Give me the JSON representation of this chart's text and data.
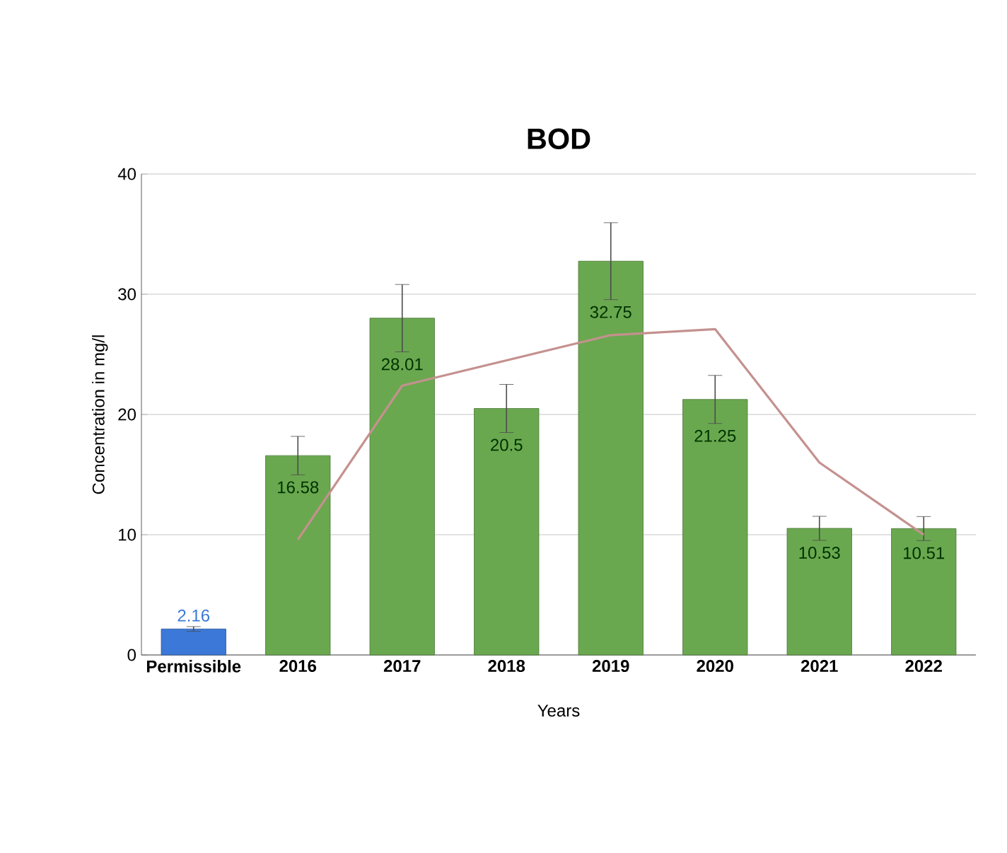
{
  "chart_data": {
    "type": "bar",
    "title": "BOD",
    "xlabel": "Years",
    "ylabel": "Concentration in mg/l",
    "categories": [
      "Permissible",
      "2016",
      "2017",
      "2018",
      "2019",
      "2020",
      "2021",
      "2022"
    ],
    "series": [
      {
        "colors": [
          "#3c78d8",
          "#6aa84f",
          "#6aa84f",
          "#6aa84f",
          "#6aa84f",
          "#6aa84f",
          "#6aa84f",
          "#6aa84f"
        ],
        "values": [
          2.16,
          16.58,
          28.01,
          20.5,
          32.75,
          21.25,
          10.53,
          10.51
        ],
        "errors": [
          0.2,
          1.6,
          2.8,
          2,
          3.2,
          2,
          1,
          1
        ],
        "value_labels": [
          "2.16",
          "16.58",
          "28.01",
          "20.5",
          "32.75",
          "21.25",
          "10.53",
          "10.51"
        ]
      },
      {
        "type": "line",
        "color": "#c4918f",
        "values": [
          null,
          9.6,
          22.4,
          24.5,
          26.6,
          27.1,
          16.0,
          10.0
        ]
      }
    ],
    "ylim": [
      0,
      40
    ],
    "yticks": [
      0,
      10,
      20,
      30,
      40
    ],
    "grid": "y"
  }
}
